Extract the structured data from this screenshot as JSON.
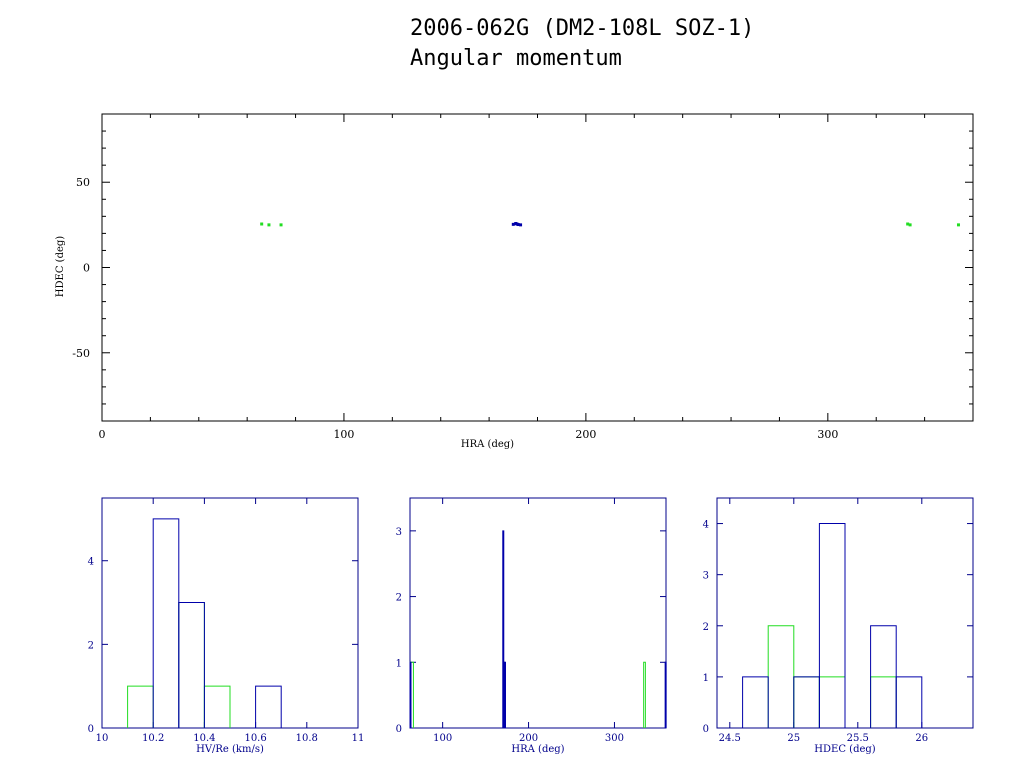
{
  "header": {
    "title": "2006-062G (DM2-108L SOZ-1)",
    "subtitle": "Angular momentum"
  },
  "colors": {
    "green": "#22dd22",
    "blue": "#0000aa",
    "axis_black": "#000000",
    "axis_blue": "#00008b"
  },
  "chart_data": [
    {
      "type": "scatter",
      "xlabel": "HRA (deg)",
      "ylabel": "HDEC (deg)",
      "xlim": [
        0,
        360
      ],
      "ylim": [
        -90,
        90
      ],
      "xticks": [
        0,
        100,
        200,
        300
      ],
      "yticks": [
        -50,
        0,
        50
      ],
      "series": [
        {
          "color": "#22dd22",
          "points": [
            [
              66,
              25.5
            ],
            [
              69,
              25.0
            ],
            [
              74,
              25.0
            ],
            [
              333,
              25.5
            ],
            [
              334,
              25.0
            ],
            [
              354,
              25.0
            ]
          ]
        },
        {
          "color": "#0000aa",
          "points": [
            [
              170,
              25.3
            ],
            [
              171,
              25.8
            ],
            [
              172,
              25.2
            ],
            [
              173,
              25.0
            ],
            [
              171.5,
              25.5
            ]
          ]
        }
      ]
    },
    {
      "type": "bar",
      "xlabel": "HV/Re (km/s)",
      "xlim": [
        10.0,
        11.0
      ],
      "ylim": [
        0,
        5.5
      ],
      "xticks": [
        "10",
        "10.2",
        "10.4",
        "10.6",
        "10.8",
        "11"
      ],
      "xtick_values": [
        10.0,
        10.2,
        10.4,
        10.6,
        10.8,
        11.0
      ],
      "yticks": [
        0,
        2,
        4
      ],
      "series": [
        {
          "color": "#22dd22",
          "bins": [
            [
              10.1,
              10.2,
              1
            ],
            [
              10.3,
              10.4,
              3
            ],
            [
              10.4,
              10.5,
              1
            ]
          ]
        },
        {
          "color": "#0000aa",
          "bins": [
            [
              10.2,
              10.3,
              5
            ],
            [
              10.3,
              10.4,
              3
            ],
            [
              10.6,
              10.7,
              1
            ]
          ]
        }
      ]
    },
    {
      "type": "bar",
      "xlabel": "HRA (deg)",
      "xlim": [
        62,
        360
      ],
      "ylim": [
        0,
        3.5
      ],
      "xticks": [
        "100",
        "200",
        "300"
      ],
      "xtick_values": [
        100,
        200,
        300
      ],
      "yticks": [
        0,
        1,
        2,
        3
      ],
      "series": [
        {
          "color": "#22dd22",
          "bins": [
            [
              62,
              66,
              1
            ],
            [
              334,
              336,
              1
            ]
          ]
        },
        {
          "color": "#0000aa",
          "bins": [
            [
              170,
              171,
              3
            ],
            [
              171,
              172,
              1
            ],
            [
              172,
              173,
              1
            ],
            [
              62,
              62.5,
              1
            ],
            [
              359,
              360,
              1
            ]
          ]
        }
      ]
    },
    {
      "type": "bar",
      "xlabel": "HDEC (deg)",
      "xlim": [
        24.4,
        26.4
      ],
      "ylim": [
        0,
        4.5
      ],
      "xticks": [
        "24.5",
        "25",
        "25.5",
        "26"
      ],
      "xtick_values": [
        24.5,
        25.0,
        25.5,
        26.0
      ],
      "yticks": [
        0,
        1,
        2,
        3,
        4
      ],
      "series": [
        {
          "color": "#22dd22",
          "bins": [
            [
              24.8,
              25.0,
              2
            ],
            [
              25.0,
              25.2,
              1
            ],
            [
              25.2,
              25.4,
              1
            ],
            [
              25.6,
              25.8,
              1
            ]
          ]
        },
        {
          "color": "#0000aa",
          "bins": [
            [
              24.6,
              24.8,
              1
            ],
            [
              25.0,
              25.2,
              1
            ],
            [
              25.2,
              25.4,
              4
            ],
            [
              25.6,
              25.8,
              2
            ],
            [
              25.8,
              26.0,
              1
            ]
          ]
        }
      ]
    }
  ]
}
